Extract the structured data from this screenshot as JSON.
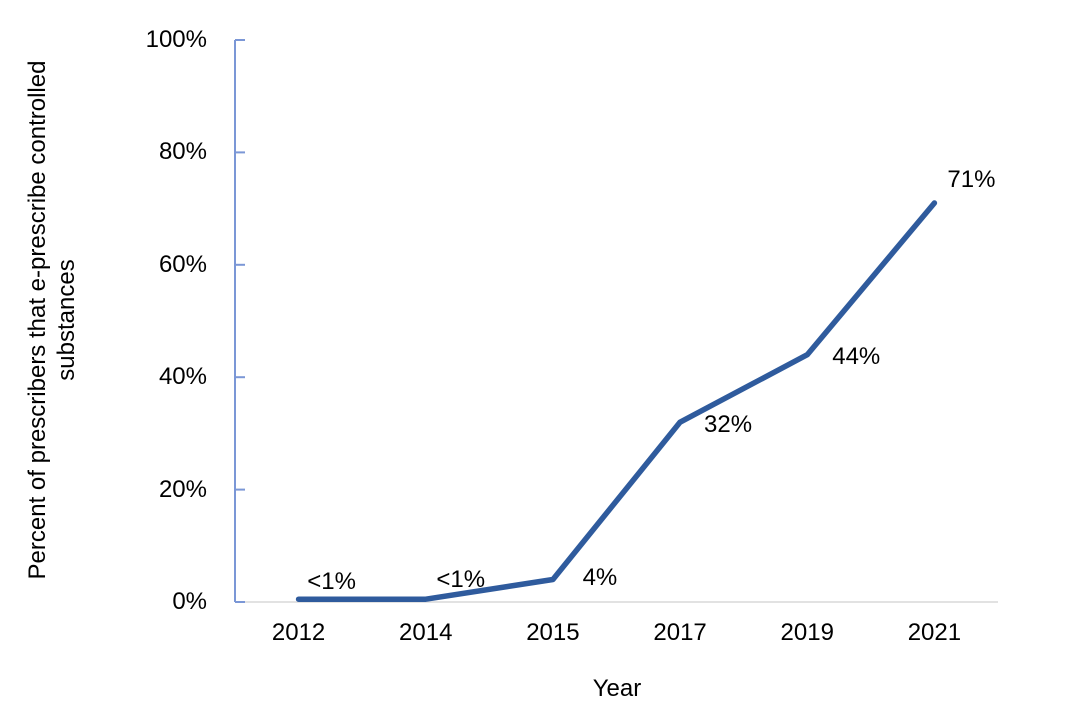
{
  "chart_data": {
    "type": "line",
    "title": "",
    "xlabel": "Year",
    "ylabel": "Percent of prescribers that e-prescribe controlled substances",
    "ylabel_lines": [
      "Percent of prescribers that e-prescribe controlled",
      "substances"
    ],
    "categories": [
      "2012",
      "2014",
      "2015",
      "2017",
      "2019",
      "2021"
    ],
    "series": [
      {
        "name": "Percent of prescribers that e-prescribe controlled substances",
        "values": [
          0.5,
          0.5,
          4,
          32,
          44,
          71
        ],
        "data_labels": [
          "<1%",
          "<1%",
          "4%",
          "32%",
          "44%",
          "71%"
        ]
      }
    ],
    "ylim": [
      0,
      100
    ],
    "yticks": [
      0,
      20,
      40,
      60,
      80,
      100
    ],
    "ytick_labels": [
      "0%",
      "20%",
      "40%",
      "60%",
      "80%",
      "100%"
    ],
    "grid": false,
    "legend": "none",
    "colors": {
      "line": "#2f5b9d",
      "y_axis": "#7b97d6",
      "x_axis": "#d9d9d9",
      "text": "#000000"
    }
  }
}
